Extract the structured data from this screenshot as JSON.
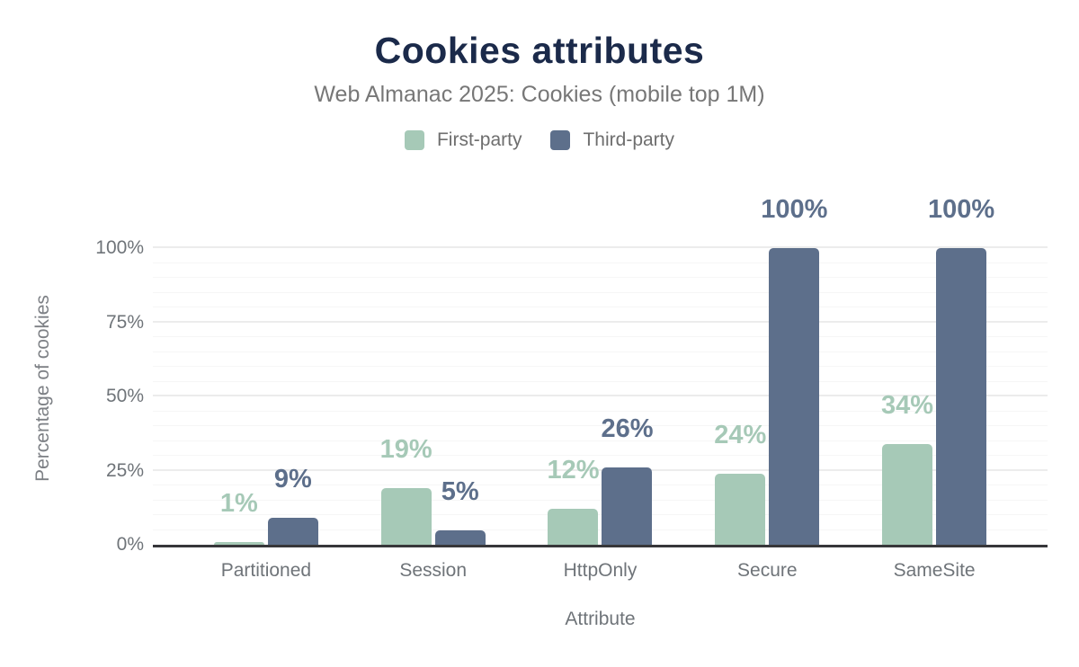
{
  "chart_data": {
    "type": "bar",
    "title": "Cookies attributes",
    "subtitle": "Web Almanac 2025: Cookies (mobile top 1M)",
    "xlabel": "Attribute",
    "ylabel": "Percentage of cookies",
    "categories": [
      "Partitioned",
      "Session",
      "HttpOnly",
      "Secure",
      "SameSite"
    ],
    "series": [
      {
        "name": "First-party",
        "color": "#a6c9b7",
        "values": [
          1,
          19,
          12,
          24,
          34
        ],
        "data_labels": [
          "1%",
          "19%",
          "12%",
          "24%",
          "34%"
        ]
      },
      {
        "name": "Third-party",
        "color": "#5d6f8b",
        "values": [
          9,
          5,
          26,
          100,
          100
        ],
        "data_labels": [
          "9%",
          "5%",
          "26%",
          "100%",
          "100%"
        ]
      }
    ],
    "ylim": [
      0,
      100
    ],
    "yticks": [
      0,
      25,
      50,
      75,
      100
    ],
    "ytick_labels": [
      "0%",
      "25%",
      "50%",
      "75%",
      "100%"
    ],
    "minor_gridline_step": 5,
    "major_gridline_step": 25,
    "grid": true,
    "legend_position": "top",
    "colors": {
      "title": "#1b2a4a",
      "subtitle": "#777777",
      "axis_text": "#6f7479",
      "axis_line": "#37373a",
      "major_gridline": "#ececec",
      "minor_gridline": "#f6f6f6",
      "background": "#ffffff"
    }
  }
}
